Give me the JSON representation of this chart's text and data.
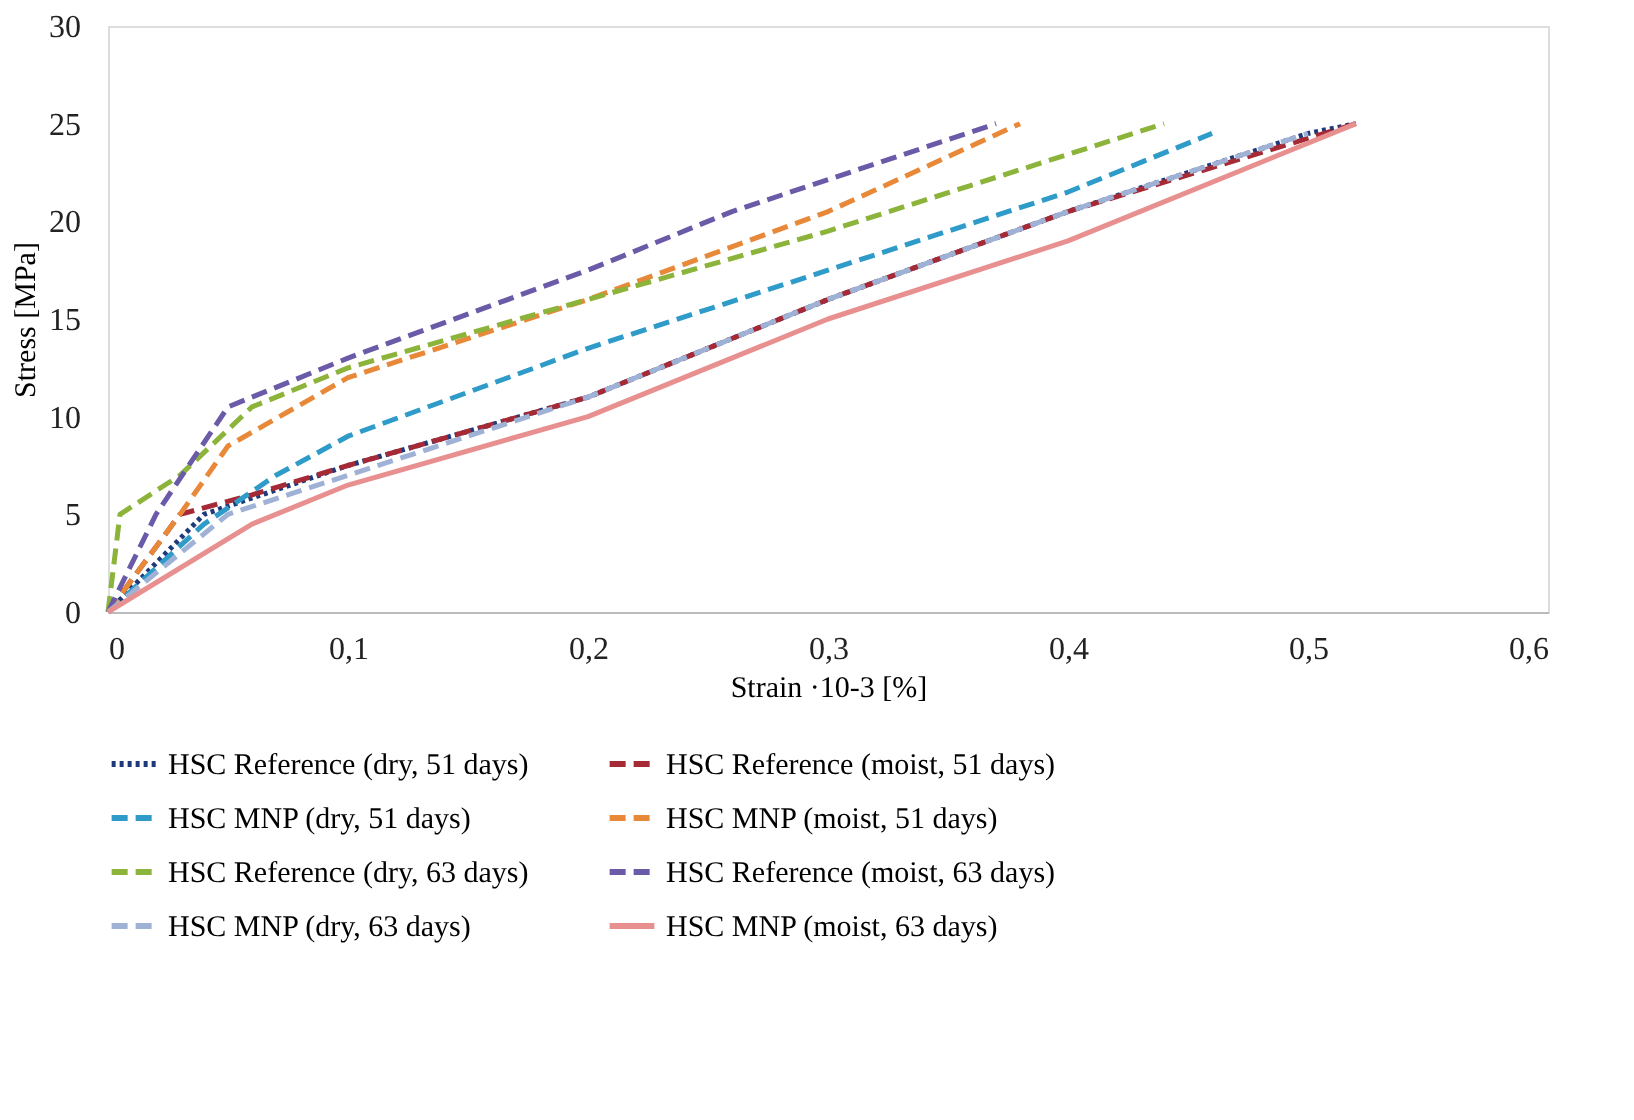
{
  "chart_data": {
    "type": "line",
    "xlabel": "Strain ·10-3 [%]",
    "ylabel": "Stress [MPa]",
    "xlim": [
      0,
      0.6
    ],
    "xticks": [
      0,
      {
        "value": 0.1,
        "label": "0,1"
      },
      {
        "value": 0.2,
        "label": "0,2"
      },
      {
        "value": 0.3,
        "label": "0,3"
      },
      {
        "value": 0.4,
        "label": "0,4"
      },
      {
        "value": 0.5,
        "label": "0,5"
      },
      {
        "value": 0.6,
        "label": "0,6"
      }
    ],
    "ylim": [
      0,
      30
    ],
    "yticks": [
      0,
      5,
      10,
      15,
      20,
      25,
      30
    ],
    "grid": false,
    "legend": "bottom",
    "marker": "none",
    "series": [
      {
        "name": "HSC Reference (dry, 51 days)",
        "color": "#1f3a7a",
        "line_style": "dotted",
        "x": [
          0,
          0.04,
          0.1,
          0.2,
          0.3,
          0.4,
          0.5,
          0.52
        ],
        "values": [
          0,
          5,
          7.5,
          11,
          16,
          20.5,
          24.5,
          25
        ]
      },
      {
        "name": "HSC Reference (moist, 51 days)",
        "color": "#a52a35",
        "line_style": "dashed",
        "x": [
          0,
          0.03,
          0.06,
          0.1,
          0.2,
          0.3,
          0.4,
          0.52
        ],
        "values": [
          0,
          5,
          6,
          7.5,
          11,
          16,
          20.5,
          25
        ]
      },
      {
        "name": "HSC MNP (dry, 51 days)",
        "color": "#2e9bc8",
        "line_style": "dashed",
        "x": [
          0,
          0.04,
          0.07,
          0.1,
          0.2,
          0.3,
          0.4,
          0.46
        ],
        "values": [
          0,
          4.5,
          7,
          9,
          13.5,
          17.5,
          21.5,
          24.5
        ]
      },
      {
        "name": "HSC MNP (moist, 51 days)",
        "color": "#e8893a",
        "line_style": "dashed",
        "x": [
          0,
          0.03,
          0.05,
          0.1,
          0.2,
          0.3,
          0.38
        ],
        "values": [
          0,
          5,
          8.5,
          12,
          16,
          20.5,
          25
        ]
      },
      {
        "name": "HSC Reference  (dry, 63 days)",
        "color": "#8cb33a",
        "line_style": "dashed",
        "x": [
          0,
          0.005,
          0.03,
          0.06,
          0.1,
          0.2,
          0.3,
          0.44
        ],
        "values": [
          0,
          5,
          7,
          10.5,
          12.5,
          16,
          19.5,
          25
        ]
      },
      {
        "name": "HSC Reference (moist, 63 days)",
        "color": "#6a5aa8",
        "line_style": "dashed",
        "x": [
          0,
          0.02,
          0.05,
          0.1,
          0.2,
          0.26,
          0.37
        ],
        "values": [
          0,
          5,
          10.5,
          13,
          17.5,
          20.5,
          25
        ]
      },
      {
        "name": "HSC MNP (dry, 63 days)",
        "color": "#9fb2d6",
        "line_style": "dashed",
        "x": [
          0,
          0.05,
          0.1,
          0.2,
          0.3,
          0.4,
          0.5
        ],
        "values": [
          0,
          5,
          7,
          11,
          16,
          20.5,
          24.5
        ]
      },
      {
        "name": "HSC MNP (moist, 63 days)",
        "color": "#e89090",
        "line_style": "solid",
        "x": [
          0,
          0.06,
          0.1,
          0.2,
          0.3,
          0.4,
          0.52
        ],
        "values": [
          0,
          4.5,
          6.5,
          10,
          15,
          19,
          25
        ]
      }
    ]
  }
}
